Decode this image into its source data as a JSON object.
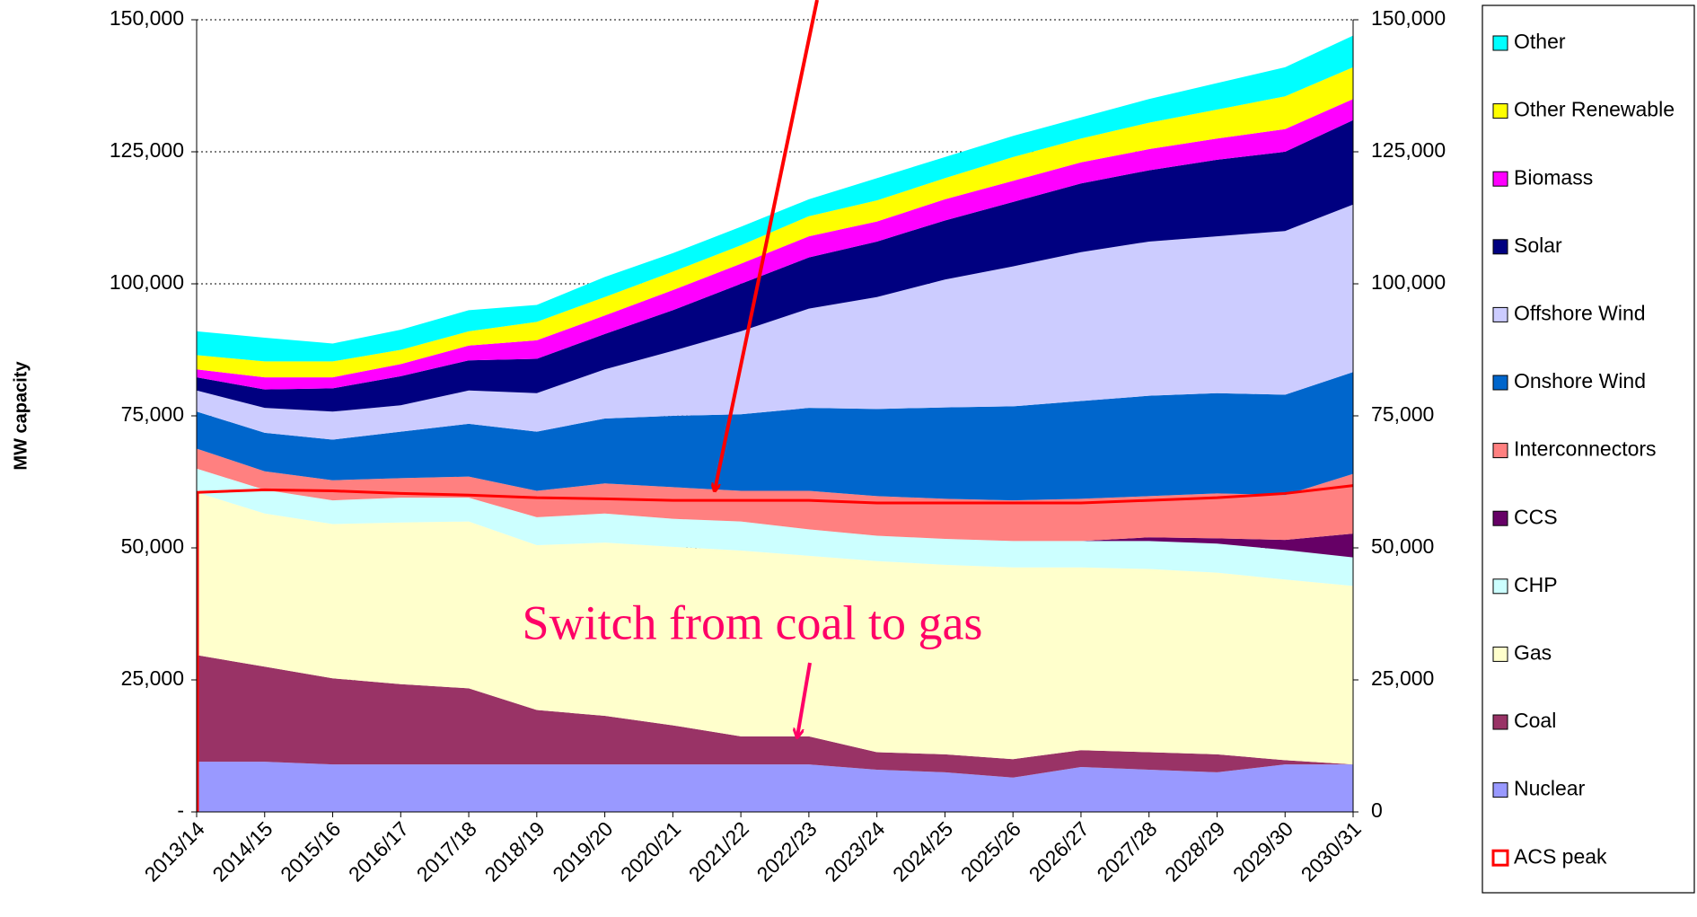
{
  "chart_data": {
    "type": "stacked-area",
    "y_label": "MW capacity",
    "annotation": "Switch from coal to gas",
    "categories": [
      "2013/14",
      "2014/15",
      "2015/16",
      "2016/17",
      "2017/18",
      "2018/19",
      "2019/20",
      "2020/21",
      "2021/22",
      "2022/23",
      "2023/24",
      "2024/25",
      "2025/26",
      "2026/27",
      "2027/28",
      "2028/29",
      "2029/30",
      "2030/31"
    ],
    "ylim": [
      0,
      150000
    ],
    "yticks": [
      {
        "value": 0,
        "label": "-"
      },
      {
        "value": 25000,
        "label": "25,000"
      },
      {
        "value": 50000,
        "label": "50,000"
      },
      {
        "value": 75000,
        "label": "75,000"
      },
      {
        "value": 100000,
        "label": "100,000"
      },
      {
        "value": 125000,
        "label": "125,000"
      },
      {
        "value": 150000,
        "label": "150,000"
      }
    ],
    "y2lim": [
      0,
      150000
    ],
    "y2ticks": [
      0,
      {
        "value": 25000,
        "label": "25,000"
      },
      {
        "value": 50000,
        "label": "50,000"
      },
      {
        "value": 75000,
        "label": "75,000"
      },
      {
        "value": 100000,
        "label": "100,000"
      },
      {
        "value": 125000,
        "label": "125,000"
      },
      {
        "value": 150000,
        "label": "150,000"
      }
    ],
    "grid": true,
    "legend": "right",
    "series": [
      {
        "name": "Nuclear",
        "color": "#9999ff",
        "values": [
          9500,
          9500,
          9000,
          9000,
          9000,
          9000,
          9000,
          9000,
          9000,
          9000,
          8000,
          7500,
          6500,
          8500,
          8000,
          7500,
          9000,
          9000
        ]
      },
      {
        "name": "Coal",
        "color": "#993366",
        "values": [
          20200,
          18000,
          16300,
          15200,
          14400,
          10300,
          9200,
          7400,
          5300,
          5300,
          3300,
          3400,
          3500,
          3200,
          3300,
          3400,
          800,
          0
        ]
      },
      {
        "name": "Gas",
        "color": "#ffffcc",
        "values": [
          30800,
          29000,
          29200,
          30600,
          31600,
          31200,
          32800,
          33800,
          35200,
          34200,
          36200,
          35900,
          36300,
          34600,
          34700,
          34400,
          34200,
          33800
        ]
      },
      {
        "name": "CHP",
        "color": "#ccffff",
        "values": [
          4500,
          4500,
          4500,
          4700,
          4500,
          5300,
          5500,
          5300,
          5500,
          5000,
          4800,
          4900,
          5000,
          5000,
          5300,
          5500,
          5600,
          5400
        ]
      },
      {
        "name": "CCS",
        "color": "#660066",
        "values": [
          0,
          0,
          0,
          0,
          0,
          0,
          0,
          0,
          0,
          0,
          0,
          0,
          0,
          0,
          700,
          1000,
          1900,
          4500
        ]
      },
      {
        "name": "Interconnectors",
        "color": "#ff8080",
        "values": [
          3800,
          3500,
          3800,
          3700,
          4000,
          5000,
          5700,
          6000,
          5800,
          7300,
          7500,
          7600,
          7700,
          8000,
          7800,
          8500,
          8500,
          11300
        ]
      },
      {
        "name": "Onshore Wind",
        "color": "#0066cc",
        "values": [
          7000,
          7300,
          7700,
          8800,
          10000,
          11200,
          12300,
          13500,
          14500,
          15700,
          16500,
          17300,
          17800,
          18500,
          19000,
          19000,
          19000,
          19300
        ]
      },
      {
        "name": "Offshore Wind",
        "color": "#ccccff",
        "values": [
          4000,
          4700,
          5300,
          5000,
          6300,
          7300,
          9300,
          12300,
          15700,
          18800,
          21200,
          24200,
          26500,
          28200,
          29200,
          29700,
          31000,
          31700
        ]
      },
      {
        "name": "Solar",
        "color": "#000080",
        "values": [
          2500,
          3500,
          4400,
          5500,
          5700,
          6500,
          6700,
          7700,
          9000,
          9700,
          10500,
          11200,
          12200,
          13000,
          13500,
          14500,
          15000,
          16000
        ]
      },
      {
        "name": "Biomass",
        "color": "#ff00ff",
        "values": [
          1500,
          2300,
          2100,
          2300,
          2800,
          3500,
          3500,
          3800,
          3800,
          4000,
          3800,
          4000,
          4000,
          4000,
          4000,
          4000,
          4300,
          4000
        ]
      },
      {
        "name": "Other Renewable",
        "color": "#ffff00",
        "values": [
          2700,
          3000,
          3000,
          2700,
          2700,
          3500,
          3500,
          3500,
          3500,
          3800,
          4000,
          4000,
          4500,
          4500,
          5000,
          5500,
          6200,
          6000
        ]
      },
      {
        "name": "Other",
        "color": "#00ffff",
        "values": [
          4500,
          4500,
          3400,
          3800,
          4000,
          3200,
          3800,
          3500,
          3500,
          3200,
          4200,
          4000,
          4000,
          4000,
          4500,
          5000,
          5500,
          6000
        ]
      }
    ],
    "peak_line": {
      "name": "ACS peak",
      "color": "#ff0000",
      "values": [
        60500,
        61000,
        60800,
        60300,
        60000,
        59500,
        59300,
        59000,
        59000,
        59000,
        58500,
        58500,
        58500,
        58500,
        59000,
        59500,
        60300,
        61800
      ]
    }
  }
}
